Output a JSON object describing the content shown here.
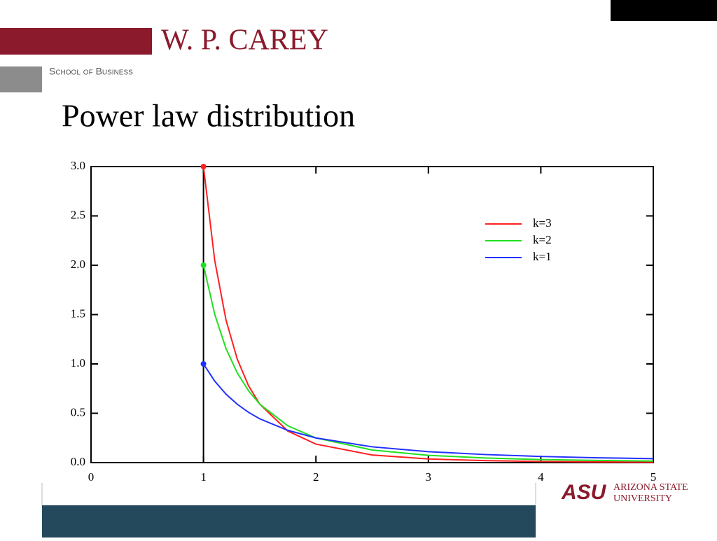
{
  "slide": {
    "brand": "W. P. CAREY",
    "school": "School of Business",
    "logo_mark": "ASU",
    "logo_line1": "Arizona State",
    "logo_line2": "University"
  },
  "chart_data": {
    "type": "line",
    "title": "Power law distribution",
    "x": [
      1,
      1.1,
      1.2,
      1.3,
      1.4,
      1.5,
      1.75,
      2,
      2.5,
      3,
      3.5,
      4,
      4.5,
      5
    ],
    "series": [
      {
        "name": "k=3",
        "color": "#ff2020",
        "values": [
          3,
          2.049,
          1.447,
          1.05,
          0.781,
          0.593,
          0.32,
          0.1875,
          0.077,
          0.037,
          0.02,
          0.0117,
          0.0073,
          0.0048
        ]
      },
      {
        "name": "k=2",
        "color": "#20e020",
        "values": [
          2,
          1.503,
          1.157,
          0.91,
          0.729,
          0.593,
          0.373,
          0.25,
          0.128,
          0.074,
          0.047,
          0.031,
          0.022,
          0.016
        ]
      },
      {
        "name": "k=1",
        "color": "#2030ff",
        "values": [
          1,
          0.826,
          0.694,
          0.592,
          0.51,
          0.444,
          0.327,
          0.25,
          0.16,
          0.111,
          0.082,
          0.0625,
          0.049,
          0.04
        ]
      }
    ],
    "vertical_line": 1,
    "xlim": [
      0,
      5
    ],
    "xticks": [
      0,
      1,
      2,
      3,
      4,
      5
    ],
    "ylim": [
      0,
      3
    ],
    "yticks": [
      {
        "value": 0,
        "label": "0.0"
      },
      0.5,
      {
        "value": 1,
        "label": "1.0"
      },
      1.5,
      {
        "value": 2,
        "label": "2.0"
      },
      2.5,
      {
        "value": 3,
        "label": "3.0"
      }
    ],
    "legend": "upper right"
  }
}
